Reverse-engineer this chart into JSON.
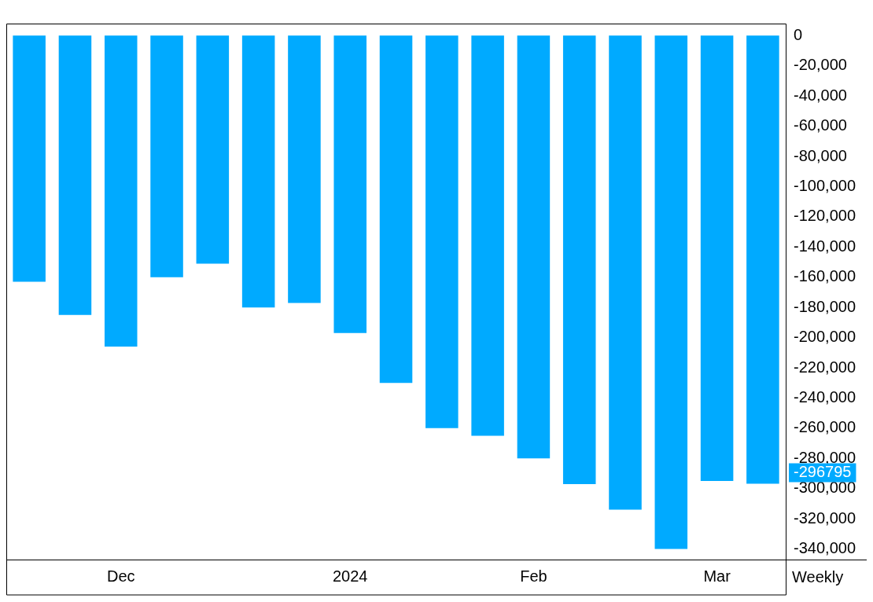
{
  "chart_data": {
    "type": "bar",
    "categories": [
      null,
      null,
      "Dec",
      null,
      null,
      null,
      null,
      "2024",
      null,
      null,
      null,
      "Feb",
      null,
      null,
      null,
      "Mar",
      null
    ],
    "values": [
      -163000,
      -185000,
      -206000,
      -160000,
      -151000,
      -180000,
      -177000,
      -197000,
      -230000,
      -260000,
      -265000,
      -280000,
      -297000,
      -314000,
      -340000,
      -295000,
      -296795
    ],
    "color": "#00aaff",
    "ylim": [
      -347000,
      8000
    ],
    "yticks": [
      0,
      {
        "value": -20000,
        "label": "-20,000"
      },
      {
        "value": -40000,
        "label": "-40,000"
      },
      {
        "value": -60000,
        "label": "-60,000"
      },
      {
        "value": -80000,
        "label": "-80,000"
      },
      {
        "value": -100000,
        "label": "-100,000"
      },
      {
        "value": -120000,
        "label": "-120,000"
      },
      {
        "value": -140000,
        "label": "-140,000"
      },
      {
        "value": -160000,
        "label": "-160,000"
      },
      {
        "value": -180000,
        "label": "-180,000"
      },
      {
        "value": -200000,
        "label": "-200,000"
      },
      {
        "value": -220000,
        "label": "-220,000"
      },
      {
        "value": -240000,
        "label": "-240,000"
      },
      {
        "value": -260000,
        "label": "-260,000"
      },
      {
        "value": -280000,
        "label": "-280,000"
      },
      {
        "value": -300000,
        "label": "-300,000"
      },
      {
        "value": -320000,
        "label": "-320,000"
      },
      {
        "value": -340000,
        "label": "-340,000"
      }
    ],
    "grid": false,
    "legend": false,
    "annotations": [
      "-296795",
      "Weekly"
    ]
  }
}
